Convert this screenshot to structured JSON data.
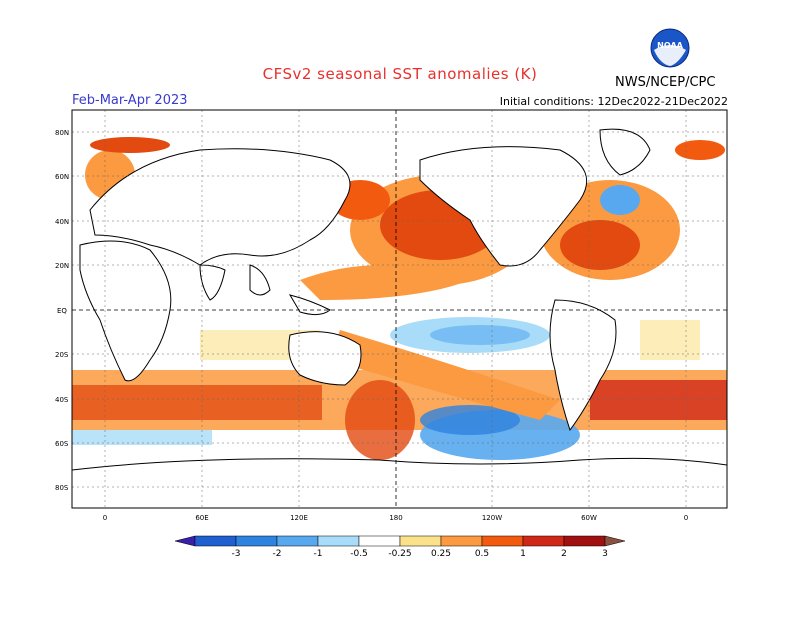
{
  "title": "CFSv2 seasonal SST anomalies (K)",
  "period": "Feb-Mar-Apr 2023",
  "initial_conditions": "Initial conditions: 12Dec2022-21Dec2022",
  "organization": "NWS/NCEP/CPC",
  "logo_text": "NOAA",
  "lat_labels": [
    "80N",
    "60N",
    "40N",
    "20N",
    "EQ",
    "20S",
    "40S",
    "60S",
    "80S"
  ],
  "lon_labels": [
    "0",
    "60E",
    "120E",
    "180",
    "120W",
    "60W",
    "0"
  ],
  "colorbar": {
    "labels": [
      "-3",
      "-2",
      "-1",
      "-0.5",
      "-0.25",
      "0.25",
      "0.5",
      "1",
      "2",
      "3"
    ],
    "colors": [
      "#3a1fa8",
      "#1f5fd0",
      "#2e82e0",
      "#58a8f0",
      "#a8dcf8",
      "#ffffff",
      "#fbe28a",
      "#fb9a40",
      "#f25a10",
      "#d02818",
      "#a01010",
      "#8a5040"
    ]
  }
}
